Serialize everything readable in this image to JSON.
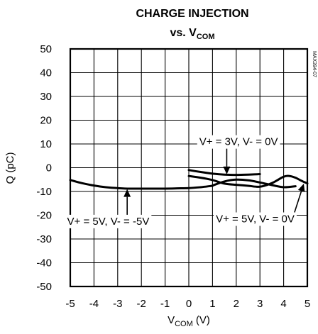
{
  "chart_data": {
    "type": "line",
    "title": {
      "main": "CHARGE INJECTION",
      "line2_prefix": "vs. V",
      "line2_sub": "COM"
    },
    "xlabel": {
      "main": "V",
      "sub": "COM",
      "unit": " (V)"
    },
    "ylabel": "Q (pC)",
    "xlim": [
      -5,
      5
    ],
    "ylim": [
      -50,
      50
    ],
    "x_ticks": [
      "-5",
      "-4",
      "-3",
      "-2",
      "-1",
      "0",
      "1",
      "2",
      "3",
      "4",
      "5"
    ],
    "y_ticks": [
      "50",
      "40",
      "30",
      "20",
      "10",
      "0",
      "-10",
      "-20",
      "-30",
      "-40",
      "-50"
    ],
    "grid": true,
    "watermark": "MAX394-07",
    "series": [
      {
        "name": "V+ = 5V, V- = -5V",
        "x": [
          -5,
          -4.5,
          -4,
          -3.5,
          -3,
          -2.5,
          -2,
          -1.5,
          -1,
          -0.5,
          0,
          0.5,
          1
        ],
        "y": [
          -5.2,
          -6.5,
          -7.5,
          -8.2,
          -8.6,
          -8.8,
          -8.8,
          -8.8,
          -8.8,
          -8.7,
          -8.6,
          -8.2,
          -7.6
        ]
      },
      {
        "name": "V+ = 3V, V- = 0V",
        "x": [
          0,
          0.5,
          1,
          1.5,
          2,
          2.5,
          3
        ],
        "y": [
          -1.0,
          -1.8,
          -2.5,
          -2.9,
          -3.0,
          -2.9,
          -2.7
        ]
      },
      {
        "name": "V+ = 5V, V- = 0V",
        "x": [
          0,
          0.5,
          1,
          1.5,
          2,
          2.5,
          3,
          3.5,
          4,
          4.25,
          4.5,
          4.75,
          5
        ],
        "y": [
          -3.5,
          -4.2,
          -5.2,
          -6.7,
          -7.2,
          -7.6,
          -8.0,
          -6.5,
          -3.8,
          -3.5,
          -4.2,
          -5.5,
          -6.6
        ]
      },
      {
        "name": "",
        "x": [
          1,
          1.5,
          2,
          2.5,
          3,
          3.5,
          4,
          4.5
        ],
        "y": [
          -7.5,
          -5.8,
          -5.0,
          -5.3,
          -6.2,
          -7.3,
          -8.2,
          -7.8
        ]
      }
    ],
    "annotations": [
      {
        "text": "V+ = 3V, V- = 0V",
        "label_at": [
          2.1,
          11
        ],
        "arrow_to": [
          1.6,
          -2.8
        ]
      },
      {
        "text": "V+ = 5V, V- = -5V",
        "label_at": [
          -3.4,
          -22.5
        ],
        "arrow_to": [
          -2.6,
          -9.0
        ]
      },
      {
        "text": "V+ = 5V, V- = 0V",
        "label_at": [
          2.8,
          -21.5
        ],
        "arrow_to": [
          4.85,
          -6.7
        ]
      }
    ]
  }
}
